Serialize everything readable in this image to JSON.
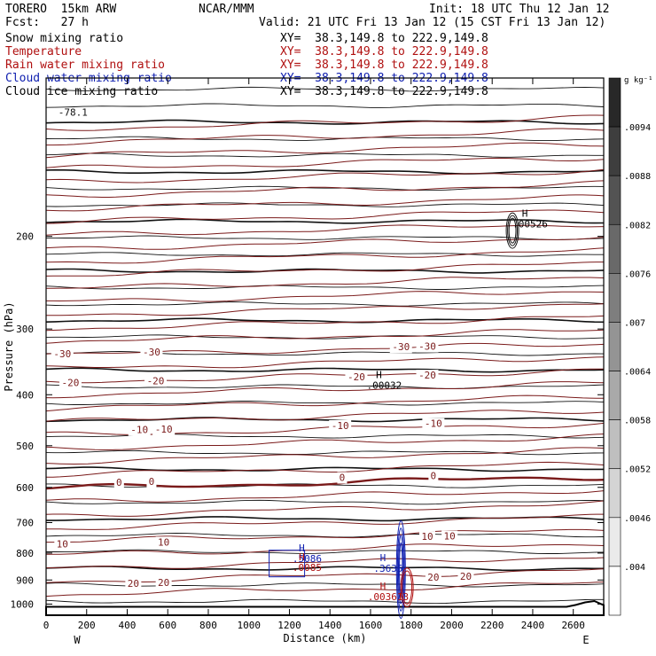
{
  "header": {
    "model": "TORERO  15km ARW",
    "center": "NCAR/MMM",
    "init": "Init: 18 UTC Thu 12 Jan 12",
    "fcst": "Fcst:   27 h",
    "valid": "Valid: 21 UTC Fri 13 Jan 12 (15 CST Fri 13 Jan 12)"
  },
  "fields": [
    {
      "name": "Snow mixing ratio",
      "xy": "XY=  38.3,149.8 to 222.9,149.8",
      "color": "#000000"
    },
    {
      "name": "Temperature",
      "xy": "XY=  38.3,149.8 to 222.9,149.8",
      "color": "#b01010"
    },
    {
      "name": "Rain water mixing ratio",
      "xy": "XY=  38.3,149.8 to 222.9,149.8",
      "color": "#b01010"
    },
    {
      "name": "Cloud water mixing ratio",
      "xy": "XY=  38.3,149.8 to 222.9,149.8",
      "color": "#1020b0"
    },
    {
      "name": "Cloud ice mixing ratio",
      "xy": "XY=  38.3,149.8 to 222.9,149.8",
      "color": "#000000"
    }
  ],
  "chart_data": {
    "type": "contour",
    "xlabel": "Distance (km)",
    "ylabel": "Pressure (hPa)",
    "xlim": [
      0,
      2750
    ],
    "ylim": [
      1050,
      100
    ],
    "yscale": "log",
    "x_ticks": [
      0,
      200,
      400,
      600,
      800,
      1000,
      1200,
      1400,
      1600,
      1800,
      2000,
      2200,
      2400,
      2600
    ],
    "y_ticks": [
      200,
      300,
      400,
      500,
      600,
      700,
      800,
      900,
      1000
    ],
    "x_end_labels": {
      "left": "W",
      "right": "E"
    },
    "colorbar": {
      "unit": "g kg⁻¹",
      "ticks": [
        ".004",
        ".0046",
        ".0052",
        ".0058",
        ".0064",
        ".007",
        ".0076",
        ".0082",
        ".0088",
        ".0094"
      ]
    },
    "isotherms": [
      {
        "value": -30,
        "pressure": 335,
        "labels": [
          {
            "text": "-30",
            "x": 80
          },
          {
            "text": "-30",
            "x": 520
          },
          {
            "text": "-30",
            "x": 1750
          },
          {
            "text": "-30",
            "x": 1880
          }
        ]
      },
      {
        "value": -20,
        "pressure": 380,
        "labels": [
          {
            "text": "-20",
            "x": 120
          },
          {
            "text": "-20",
            "x": 540
          },
          {
            "text": "-20",
            "x": 1530
          },
          {
            "text": "-20",
            "x": 1880
          }
        ]
      },
      {
        "value": -10,
        "pressure": 470,
        "labels": [
          {
            "text": "-10",
            "x": 460
          },
          {
            "text": "-10",
            "x": 580
          },
          {
            "text": "-10",
            "x": 1450
          },
          {
            "text": "-10",
            "x": 1910
          }
        ]
      },
      {
        "value": 0,
        "pressure": 590,
        "labels": [
          {
            "text": "0",
            "x": 360
          },
          {
            "text": "0",
            "x": 520
          },
          {
            "text": "0",
            "x": 1460
          },
          {
            "text": "0",
            "x": 1910
          }
        ]
      },
      {
        "value": 10,
        "pressure": 770,
        "labels": [
          {
            "text": "10",
            "x": 80
          },
          {
            "text": "10",
            "x": 580
          },
          {
            "text": "10",
            "x": 1880
          },
          {
            "text": "10",
            "x": 1990
          }
        ]
      },
      {
        "value": 20,
        "pressure": 920,
        "labels": [
          {
            "text": "20",
            "x": 430
          },
          {
            "text": "20",
            "x": 580
          },
          {
            "text": "20",
            "x": 1910
          },
          {
            "text": "20",
            "x": 2070
          }
        ]
      }
    ],
    "maxima": [
      {
        "label": "H",
        "value": ".00526",
        "x": 2300,
        "pressure": 185,
        "color": "#000000"
      },
      {
        "label": "H",
        "value": ".00032",
        "x": 1580,
        "pressure": 375,
        "color": "#000000"
      },
      {
        "label": "H",
        "value": ".5086",
        "x": 1200,
        "pressure": 800,
        "color": "#1020b0"
      },
      {
        "label": "H",
        "value": ".0085",
        "x": 1200,
        "pressure": 800,
        "color": "#b01010"
      },
      {
        "label": "H",
        "value": ".3635",
        "x": 1600,
        "pressure": 835,
        "color": "#1020b0"
      },
      {
        "label": "H",
        "value": ".003613",
        "x": 1600,
        "pressure": 910,
        "color": "#b01010"
      }
    ],
    "upper_left_label": "-78.1"
  }
}
